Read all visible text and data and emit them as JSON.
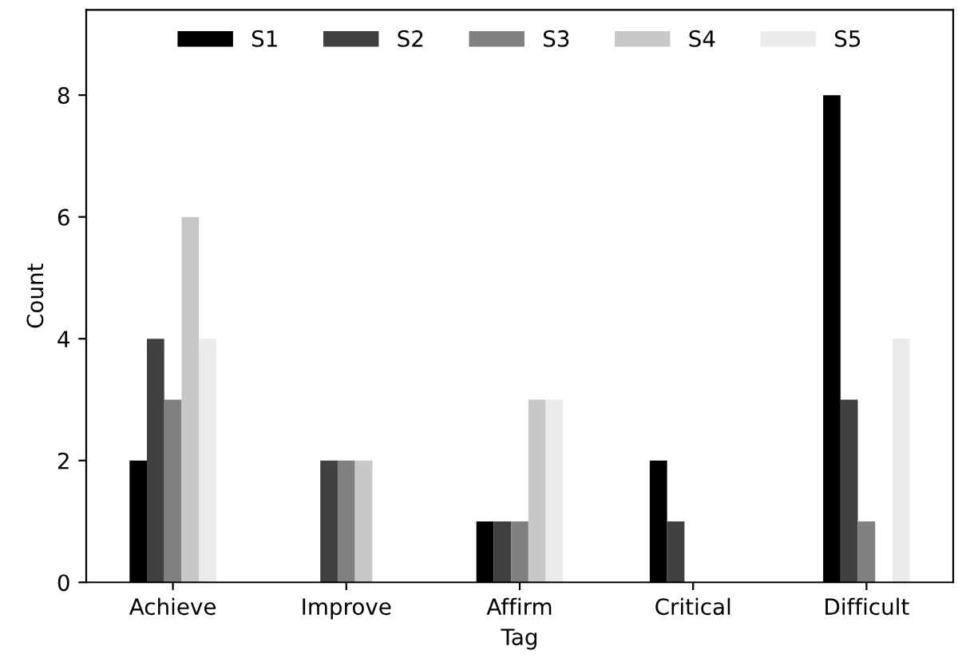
{
  "chart_data": {
    "type": "bar",
    "xlabel": "Tag",
    "ylabel": "Count",
    "categories": [
      "Achieve",
      "Improve",
      "Affirm",
      "Critical",
      "Difficult"
    ],
    "series": [
      {
        "name": "S1",
        "color": "#000000",
        "values": [
          2,
          0,
          1,
          2,
          8
        ]
      },
      {
        "name": "S2",
        "color": "#404040",
        "values": [
          4,
          2,
          1,
          1,
          3
        ]
      },
      {
        "name": "S3",
        "color": "#808080",
        "values": [
          3,
          2,
          1,
          0,
          1
        ]
      },
      {
        "name": "S4",
        "color": "#c8c8c8",
        "values": [
          6,
          2,
          3,
          0,
          0
        ]
      },
      {
        "name": "S5",
        "color": "#ebebeb",
        "values": [
          4,
          0,
          3,
          0,
          4
        ]
      }
    ],
    "ylim": [
      0,
      9.4
    ],
    "yticks": [
      0,
      2,
      4,
      6,
      8
    ],
    "legend": "top",
    "grid": false
  }
}
